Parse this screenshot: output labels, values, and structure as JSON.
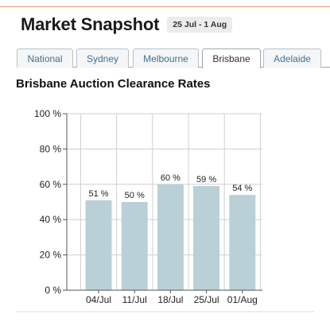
{
  "header": {
    "title": "Market Snapshot",
    "date_range": "25 Jul - 1 Aug"
  },
  "tabs": [
    {
      "label": "National",
      "active": false
    },
    {
      "label": "Sydney",
      "active": false
    },
    {
      "label": "Melbourne",
      "active": false
    },
    {
      "label": "Brisbane",
      "active": true
    },
    {
      "label": "Adelaide",
      "active": false
    }
  ],
  "colors": {
    "bar": "#bad0d7",
    "grid": "#d0d0d0",
    "accent_rule": "#e8a07a"
  },
  "chart_data": {
    "type": "bar",
    "title": "Brisbane Auction Clearance Rates",
    "categories": [
      "04/Jul",
      "11/Jul",
      "18/Jul",
      "25/Jul",
      "01/Aug"
    ],
    "values": [
      51,
      50,
      60,
      59,
      54
    ],
    "data_labels": [
      "51 %",
      "50 %",
      "60 %",
      "59 %",
      "54 %"
    ],
    "y_ticks": [
      "0 %",
      "20 %",
      "40 %",
      "60 %",
      "80 %",
      "100 %"
    ],
    "y_tick_values": [
      0,
      20,
      40,
      60,
      80,
      100
    ],
    "ylim": [
      0,
      100
    ],
    "grid": true,
    "xlabel": "",
    "ylabel": ""
  }
}
